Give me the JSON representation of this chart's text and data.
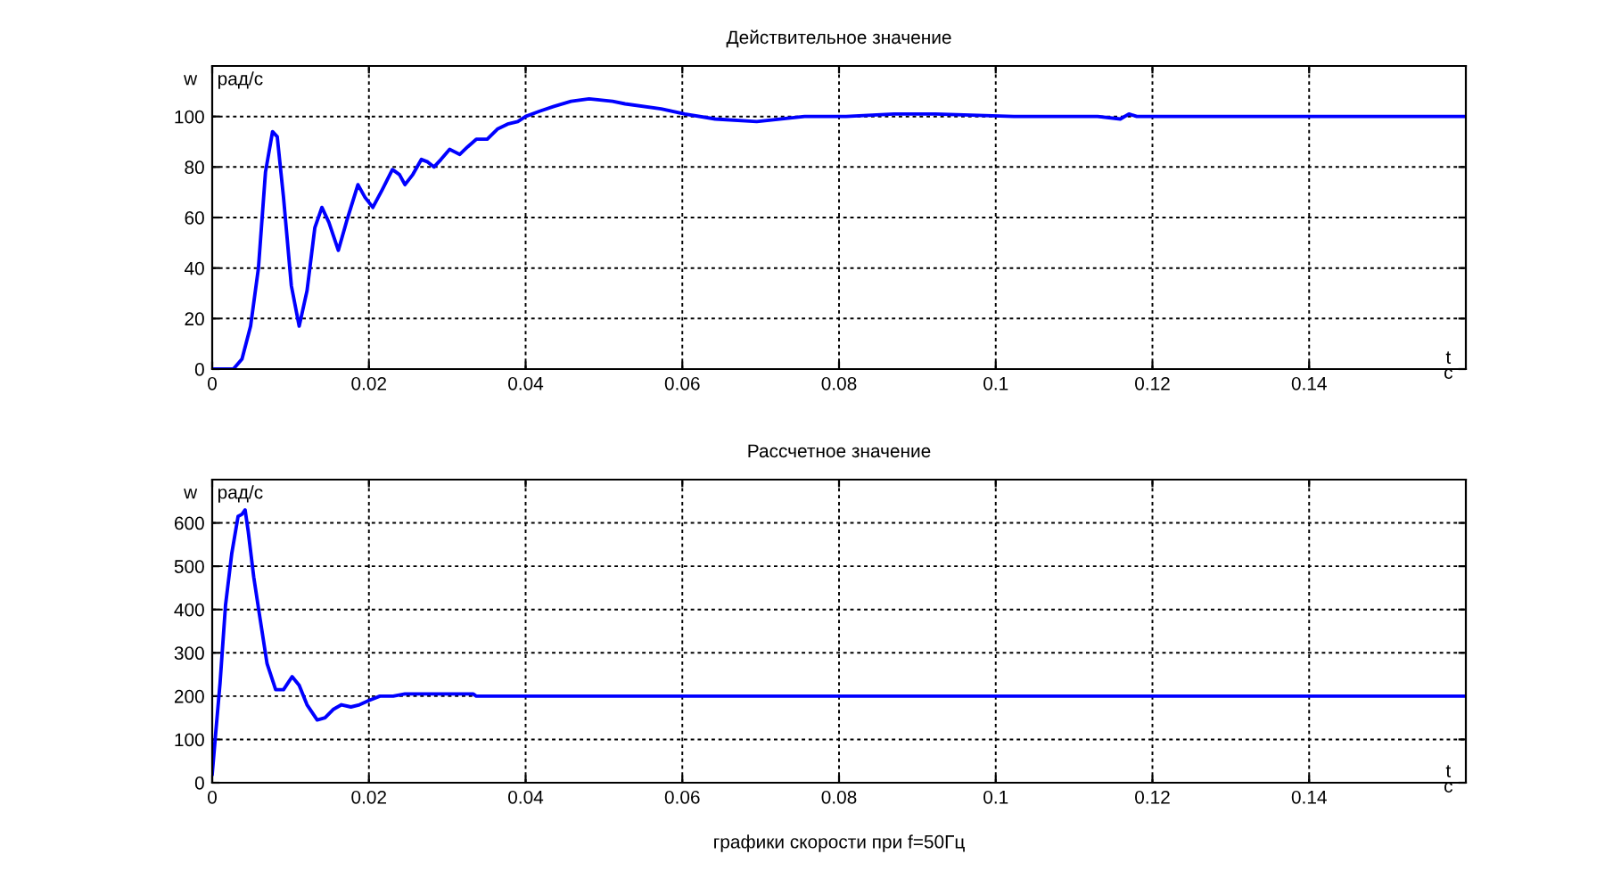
{
  "chart_data": [
    {
      "type": "line",
      "title": "Действительное значение",
      "xlabel": "t",
      "ylabel": "w",
      "annotations": [
        "рад/с",
        "c"
      ],
      "x": [
        0,
        0.0027,
        0.0038,
        0.0049,
        0.0059,
        0.0068,
        0.0077,
        0.0083,
        0.0091,
        0.0101,
        0.0111,
        0.0121,
        0.0131,
        0.014,
        0.0149,
        0.0161,
        0.0172,
        0.0186,
        0.0195,
        0.0205,
        0.0217,
        0.023,
        0.0239,
        0.0246,
        0.0256,
        0.0267,
        0.0275,
        0.0283,
        0.0292,
        0.0303,
        0.0316,
        0.0326,
        0.0337,
        0.0351,
        0.0364,
        0.0377,
        0.039,
        0.04,
        0.0417,
        0.0436,
        0.0458,
        0.0481,
        0.0511,
        0.0527,
        0.0573,
        0.0603,
        0.0642,
        0.0695,
        0.0756,
        0.0809,
        0.087,
        0.0923,
        0.1023,
        0.113,
        0.1159,
        0.117,
        0.118,
        0.12,
        0.125,
        0.13,
        0.14,
        0.16
      ],
      "series": [
        {
          "color": "#0000ff",
          "values": [
            0,
            0,
            4,
            17,
            40,
            78,
            94,
            92,
            68,
            33,
            17,
            31,
            56,
            64,
            58,
            47,
            59,
            73,
            68,
            64,
            71,
            79,
            77,
            73,
            77,
            83,
            82,
            80,
            83,
            87,
            85,
            88,
            91,
            91,
            95,
            97,
            98,
            100,
            102,
            104,
            106,
            107,
            106,
            105,
            103,
            101,
            99,
            98,
            100,
            100,
            101,
            101,
            100,
            100,
            99,
            101,
            100,
            100,
            100,
            100,
            100,
            100
          ]
        }
      ],
      "xlim": [
        0,
        0.16
      ],
      "xticks": [
        0,
        0.02,
        0.04,
        0.06,
        0.08,
        0.1,
        0.12,
        0.14
      ],
      "ylim": [
        0,
        120
      ],
      "yticks": [
        0,
        20,
        40,
        60,
        80,
        100
      ],
      "grid": true,
      "line_style": "solid"
    },
    {
      "type": "line",
      "title": "Рассчетное значение",
      "xlabel": "t",
      "ylabel": "w",
      "annotations": [
        "рад/с",
        "c",
        "графики скорости при f=50Гц"
      ],
      "x": [
        0,
        0.0004,
        0.001,
        0.0017,
        0.0025,
        0.0033,
        0.0038,
        0.0042,
        0.0046,
        0.0053,
        0.0061,
        0.007,
        0.0081,
        0.0091,
        0.0102,
        0.0111,
        0.0121,
        0.0134,
        0.0144,
        0.0155,
        0.0165,
        0.0177,
        0.0188,
        0.02,
        0.0214,
        0.0231,
        0.0246,
        0.0269,
        0.0333,
        0.0337,
        0.16
      ],
      "series": [
        {
          "color": "#0000ff",
          "values": [
            20,
            105,
            230,
            410,
            530,
            615,
            620,
            630,
            580,
            475,
            380,
            275,
            215,
            215,
            245,
            225,
            180,
            145,
            150,
            170,
            180,
            175,
            180,
            190,
            200,
            200,
            205,
            205,
            205,
            200,
            200
          ]
        }
      ],
      "xlim": [
        0,
        0.16
      ],
      "xticks": [
        0,
        0.02,
        0.04,
        0.06,
        0.08,
        0.1,
        0.12,
        0.14
      ],
      "ylim": [
        0,
        700
      ],
      "yticks": [
        0,
        100,
        200,
        300,
        400,
        500,
        600
      ],
      "grid": true,
      "line_style": "solid"
    }
  ]
}
